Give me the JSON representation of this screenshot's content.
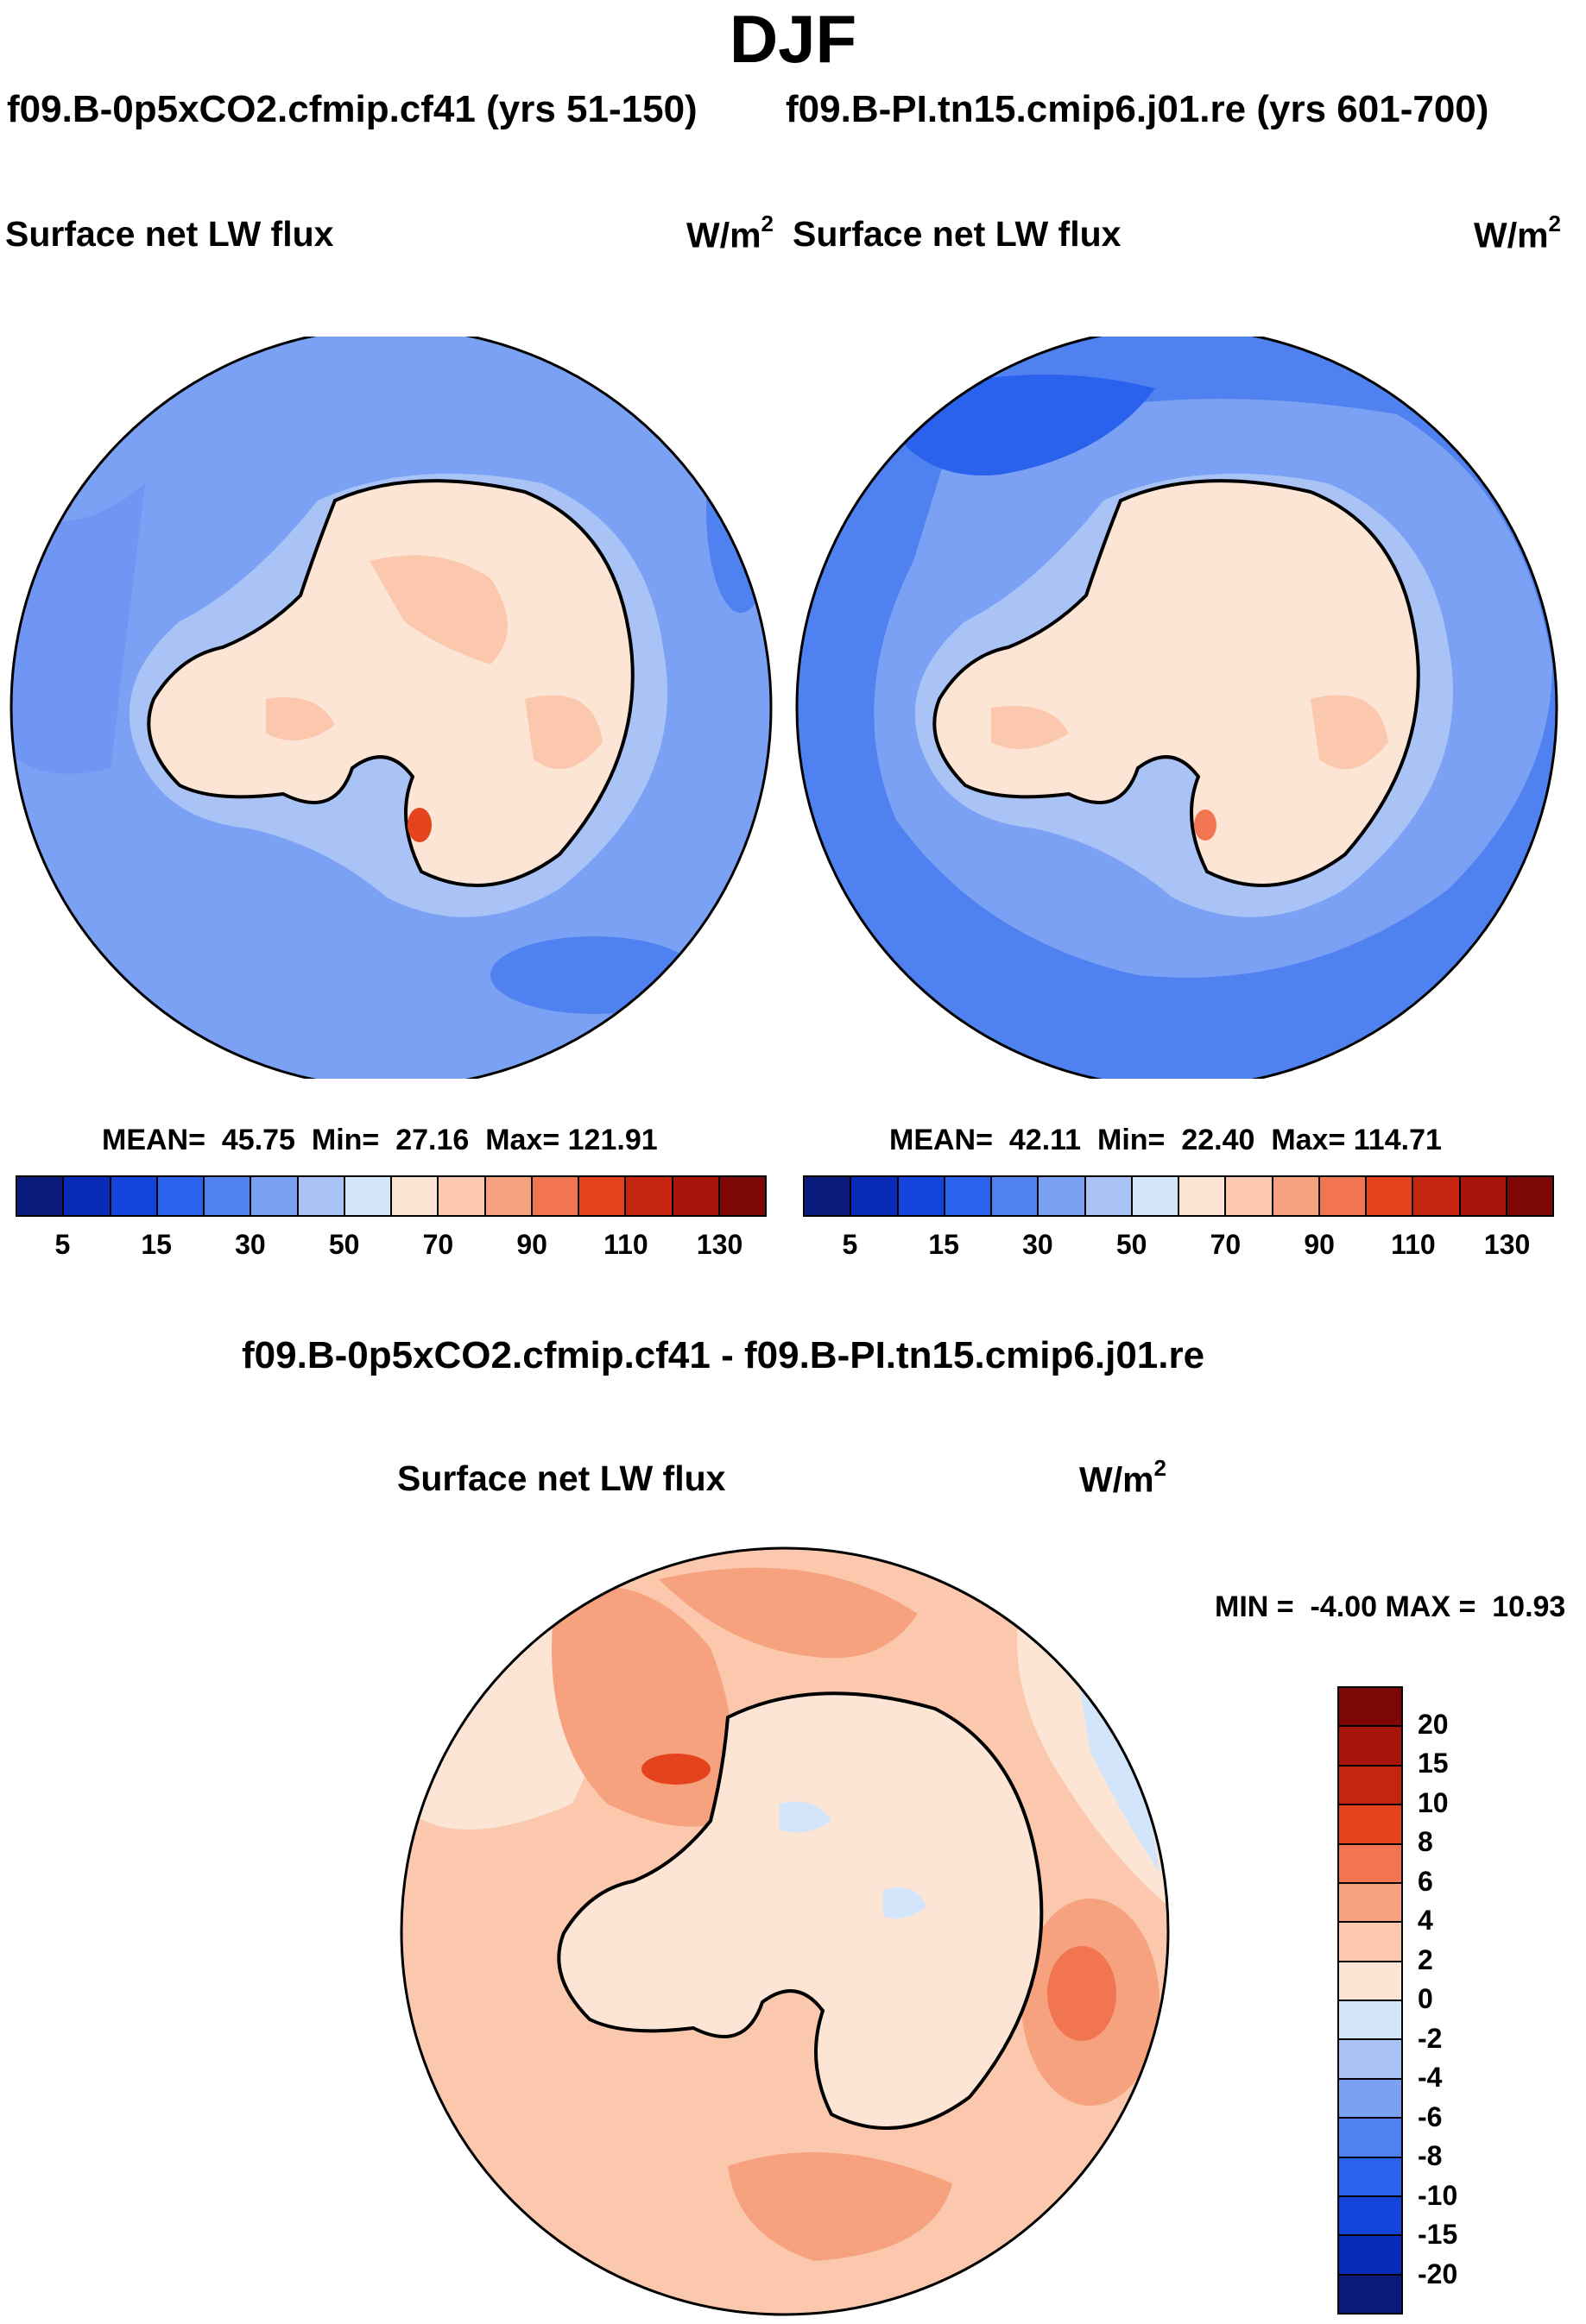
{
  "season": "DJF",
  "case_left_label": "f09.B-0p5xCO2.cfmip.cf41 (yrs 51-150)",
  "case_right_label": "f09.B-PI.tn15.cmip6.j01.re (yrs 601-700)",
  "variable": "Surface net LW flux",
  "units": {
    "base": "W/m",
    "exp": "2"
  },
  "panel_left": {
    "stats": {
      "mean_label": "MEAN=",
      "mean": "45.75",
      "min_label": "Min=",
      "min": "27.16",
      "max_label": "Max=",
      "max": "121.91"
    }
  },
  "panel_right": {
    "stats": {
      "mean_label": "MEAN=",
      "mean": "42.11",
      "min_label": "Min=",
      "min": "22.40",
      "max_label": "Max=",
      "max": "114.71"
    }
  },
  "abs_colorbar": {
    "ticks": [
      "5",
      "15",
      "30",
      "50",
      "70",
      "90",
      "110",
      "130"
    ],
    "colors": [
      "#0a1a7a",
      "#0a2ab8",
      "#1444d9",
      "#2a62ee",
      "#4f82f0",
      "#7ba1f4",
      "#a9c3f7",
      "#d3e5fb",
      "#fde5d6",
      "#fbc8ae",
      "#f7a27e",
      "#f07550",
      "#e4431e",
      "#c52410",
      "#a6140a",
      "#7d0606"
    ]
  },
  "diff": {
    "title": "f09.B-0p5xCO2.cfmip.cf41 - f09.B-PI.tn15.cmip6.j01.re",
    "stats": {
      "min_label": "MIN =",
      "min": "-4.00",
      "max_label": "MAX =",
      "max": "10.93"
    },
    "colorbar_ticks": [
      "20",
      "15",
      "10",
      "8",
      "6",
      "4",
      "2",
      "0",
      "-2",
      "-4",
      "-6",
      "-8",
      "-10",
      "-15",
      "-20"
    ],
    "colorbar_colors": [
      "#7d0606",
      "#a6140a",
      "#c52410",
      "#e4431e",
      "#f07550",
      "#f7a27e",
      "#fbc8ae",
      "#fde5d6",
      "#d3e5fb",
      "#a9c3f7",
      "#7ba1f4",
      "#4f82f0",
      "#2a62ee",
      "#1444d9",
      "#0a2ab8",
      "#0a1a7a"
    ]
  },
  "colors": {
    "ocean_left": "#7ba1f4",
    "ocean_right": "#4f82f0",
    "land": "#fde5d6"
  }
}
